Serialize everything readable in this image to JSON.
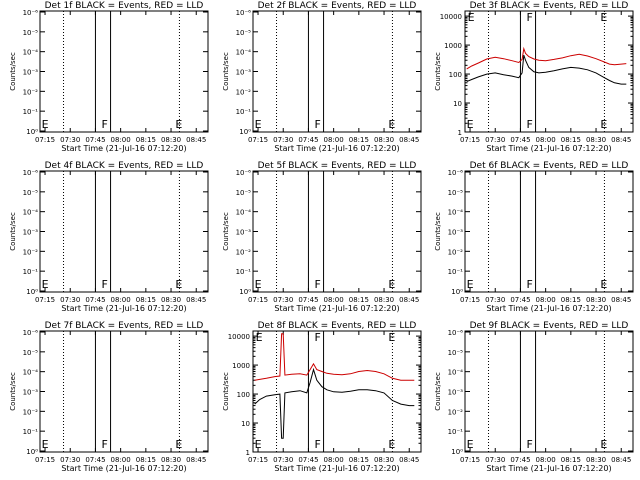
{
  "figure": {
    "common": {
      "xlabel": "Start Time (21-Jul-16 07:12:20)",
      "ylabel": "Counts/sec",
      "x_ticks": [
        "07:15",
        "07:30",
        "07:45",
        "08:00",
        "08:15",
        "08:30",
        "08:45"
      ],
      "log_ticks": [
        "10⁰",
        "10⁻¹",
        "10⁻²",
        "10⁻³",
        "10⁻⁴",
        "10⁻⁵",
        "10⁻⁶"
      ],
      "count_ticks": [
        "1",
        "10",
        "100",
        "1000",
        "10000"
      ],
      "colors": {
        "events": "#000000",
        "lld": "#cc0000",
        "frame": "#000000"
      }
    }
  },
  "chart_data": [
    {
      "type": "line",
      "title": "Det 1f BLACK = Events, RED = LLD",
      "xlabel": "Start Time (21-Jul-16 07:12:20)",
      "ylabel": "Counts/sec",
      "x_range": [
        "07:12",
        "08:52"
      ],
      "y_scale": "log",
      "ylim": [
        "10⁰",
        "10⁻⁶"
      ],
      "markers": [
        {
          "label": "E",
          "time": "07:13"
        },
        {
          "label": "F",
          "time": "07:48"
        },
        {
          "label": "E",
          "time": "08:32"
        }
      ],
      "dotted_lines": [
        "07:26",
        "08:35"
      ],
      "solid_lines": [
        "07:45",
        "07:54"
      ],
      "series": []
    },
    {
      "type": "line",
      "title": "Det 2f BLACK = Events, RED = LLD",
      "xlabel": "Start Time (21-Jul-16 07:12:20)",
      "ylabel": "Counts/sec",
      "x_range": [
        "07:12",
        "08:52"
      ],
      "y_scale": "log",
      "ylim": [
        "10⁰",
        "10⁻⁶"
      ],
      "markers": [
        {
          "label": "E",
          "time": "07:13"
        },
        {
          "label": "F",
          "time": "07:48"
        },
        {
          "label": "E",
          "time": "08:32"
        }
      ],
      "dotted_lines": [
        "07:26",
        "08:35"
      ],
      "solid_lines": [
        "07:45",
        "07:54"
      ],
      "series": []
    },
    {
      "type": "line",
      "title": "Det 3f BLACK = Events, RED = LLD",
      "xlabel": "Start Time (21-Jul-16 07:12:20)",
      "ylabel": "Counts/sec",
      "x_range": [
        "07:12",
        "08:52"
      ],
      "y_scale": "log",
      "ylim": [
        1,
        15000
      ],
      "markers": [
        {
          "label": "E",
          "time": "07:13"
        },
        {
          "label": "F",
          "time": "07:48"
        },
        {
          "label": "E",
          "time": "08:32"
        }
      ],
      "dotted_lines": [
        "07:26",
        "08:35"
      ],
      "solid_lines": [
        "07:45",
        "07:54"
      ],
      "series": [
        {
          "color": "#cc0000",
          "x": [
            "07:13",
            "07:16",
            "07:20",
            "07:25",
            "07:30",
            "07:35",
            "07:40",
            "07:44",
            "07:46",
            "07:47",
            "07:48",
            "07:50",
            "07:53",
            "07:56",
            "08:00",
            "08:05",
            "08:10",
            "08:15",
            "08:20",
            "08:25",
            "08:30",
            "08:35",
            "08:38",
            "08:41",
            "08:45",
            "08:48"
          ],
          "y": [
            150,
            190,
            240,
            330,
            380,
            340,
            290,
            250,
            320,
            750,
            520,
            400,
            330,
            300,
            290,
            320,
            360,
            430,
            480,
            420,
            340,
            260,
            220,
            210,
            220,
            230
          ]
        },
        {
          "color": "#000000",
          "x": [
            "07:13",
            "07:16",
            "07:20",
            "07:25",
            "07:30",
            "07:35",
            "07:40",
            "07:44",
            "07:46",
            "07:47",
            "07:48",
            "07:50",
            "07:53",
            "07:56",
            "08:00",
            "08:05",
            "08:10",
            "08:15",
            "08:20",
            "08:25",
            "08:30",
            "08:35",
            "08:38",
            "08:41",
            "08:45",
            "08:48"
          ],
          "y": [
            55,
            65,
            80,
            100,
            110,
            95,
            85,
            75,
            110,
            450,
            300,
            170,
            120,
            110,
            115,
            130,
            150,
            170,
            160,
            140,
            110,
            75,
            60,
            50,
            45,
            45
          ]
        }
      ]
    },
    {
      "type": "line",
      "title": "Det 4f BLACK = Events, RED = LLD",
      "xlabel": "Start Time (21-Jul-16 07:12:20)",
      "ylabel": "Counts/sec",
      "x_range": [
        "07:12",
        "08:52"
      ],
      "y_scale": "log",
      "ylim": [
        "10⁰",
        "10⁻⁶"
      ],
      "markers": [
        {
          "label": "E",
          "time": "07:13"
        },
        {
          "label": "F",
          "time": "07:48"
        },
        {
          "label": "E",
          "time": "08:32"
        }
      ],
      "dotted_lines": [
        "07:26",
        "08:35"
      ],
      "solid_lines": [
        "07:45",
        "07:54"
      ],
      "series": []
    },
    {
      "type": "line",
      "title": "Det 5f BLACK = Events, RED = LLD",
      "xlabel": "Start Time (21-Jul-16 07:12:20)",
      "ylabel": "Counts/sec",
      "x_range": [
        "07:12",
        "08:52"
      ],
      "y_scale": "log",
      "ylim": [
        "10⁰",
        "10⁻⁶"
      ],
      "markers": [
        {
          "label": "E",
          "time": "07:13"
        },
        {
          "label": "F",
          "time": "07:48"
        },
        {
          "label": "E",
          "time": "08:32"
        }
      ],
      "dotted_lines": [
        "07:26",
        "08:35"
      ],
      "solid_lines": [
        "07:45",
        "07:54"
      ],
      "series": []
    },
    {
      "type": "line",
      "title": "Det 6f BLACK = Events, RED = LLD",
      "xlabel": "Start Time (21-Jul-16 07:12:20)",
      "ylabel": "Counts/sec",
      "x_range": [
        "07:12",
        "08:52"
      ],
      "y_scale": "log",
      "ylim": [
        "10⁰",
        "10⁻⁶"
      ],
      "markers": [
        {
          "label": "E",
          "time": "07:13"
        },
        {
          "label": "F",
          "time": "07:48"
        },
        {
          "label": "E",
          "time": "08:32"
        }
      ],
      "dotted_lines": [
        "07:26",
        "08:35"
      ],
      "solid_lines": [
        "07:45",
        "07:54"
      ],
      "series": []
    },
    {
      "type": "line",
      "title": "Det 7f BLACK = Events, RED = LLD",
      "xlabel": "Start Time (21-Jul-16 07:12:20)",
      "ylabel": "Counts/sec",
      "x_range": [
        "07:12",
        "08:52"
      ],
      "y_scale": "log",
      "ylim": [
        "10⁰",
        "10⁻⁶"
      ],
      "markers": [
        {
          "label": "E",
          "time": "07:13"
        },
        {
          "label": "F",
          "time": "07:48"
        },
        {
          "label": "E",
          "time": "08:32"
        }
      ],
      "dotted_lines": [
        "07:26",
        "08:35"
      ],
      "solid_lines": [
        "07:45",
        "07:54"
      ],
      "series": []
    },
    {
      "type": "line",
      "title": "Det 8f BLACK = Events, RED = LLD",
      "xlabel": "Start Time (21-Jul-16 07:12:20)",
      "ylabel": "Counts/sec",
      "x_range": [
        "07:12",
        "08:52"
      ],
      "y_scale": "log",
      "ylim": [
        1,
        15000
      ],
      "markers": [
        {
          "label": "E",
          "time": "07:13"
        },
        {
          "label": "F",
          "time": "07:48"
        },
        {
          "label": "E",
          "time": "08:32"
        }
      ],
      "dotted_lines": [
        "07:26",
        "08:35"
      ],
      "solid_lines": [
        "07:45",
        "07:54"
      ],
      "series": [
        {
          "color": "#cc0000",
          "x": [
            "07:13",
            "07:16",
            "07:20",
            "07:25",
            "07:28",
            "07:29",
            "07:30",
            "07:31",
            "07:35",
            "07:40",
            "07:44",
            "07:46",
            "07:48",
            "07:50",
            "07:53",
            "07:56",
            "08:00",
            "08:05",
            "08:10",
            "08:15",
            "08:20",
            "08:25",
            "08:30",
            "08:35",
            "08:40",
            "08:45",
            "08:48"
          ],
          "y": [
            300,
            320,
            350,
            400,
            420,
            12000,
            12000,
            450,
            480,
            500,
            450,
            700,
            1100,
            700,
            600,
            520,
            480,
            460,
            500,
            600,
            650,
            600,
            500,
            350,
            300,
            300,
            300
          ]
        },
        {
          "color": "#000000",
          "x": [
            "07:13",
            "07:16",
            "07:20",
            "07:25",
            "07:28",
            "07:29",
            "07:30",
            "07:31",
            "07:35",
            "07:40",
            "07:44",
            "07:46",
            "07:48",
            "07:50",
            "07:53",
            "07:56",
            "08:00",
            "08:05",
            "08:10",
            "08:15",
            "08:20",
            "08:25",
            "08:30",
            "08:35",
            "08:40",
            "08:45",
            "08:48"
          ],
          "y": [
            45,
            65,
            85,
            95,
            100,
            3,
            3,
            110,
            120,
            130,
            110,
            250,
            700,
            300,
            180,
            140,
            120,
            115,
            125,
            140,
            140,
            130,
            110,
            60,
            45,
            40,
            40
          ]
        }
      ]
    },
    {
      "type": "line",
      "title": "Det 9f BLACK = Events, RED = LLD",
      "xlabel": "Start Time (21-Jul-16 07:12:20)",
      "ylabel": "Counts/sec",
      "x_range": [
        "07:12",
        "08:52"
      ],
      "y_scale": "log",
      "ylim": [
        "10⁰",
        "10⁻⁶"
      ],
      "markers": [
        {
          "label": "E",
          "time": "07:13"
        },
        {
          "label": "F",
          "time": "07:48"
        },
        {
          "label": "E",
          "time": "08:32"
        }
      ],
      "dotted_lines": [
        "07:26",
        "08:35"
      ],
      "solid_lines": [
        "07:45",
        "07:54"
      ],
      "series": []
    }
  ]
}
